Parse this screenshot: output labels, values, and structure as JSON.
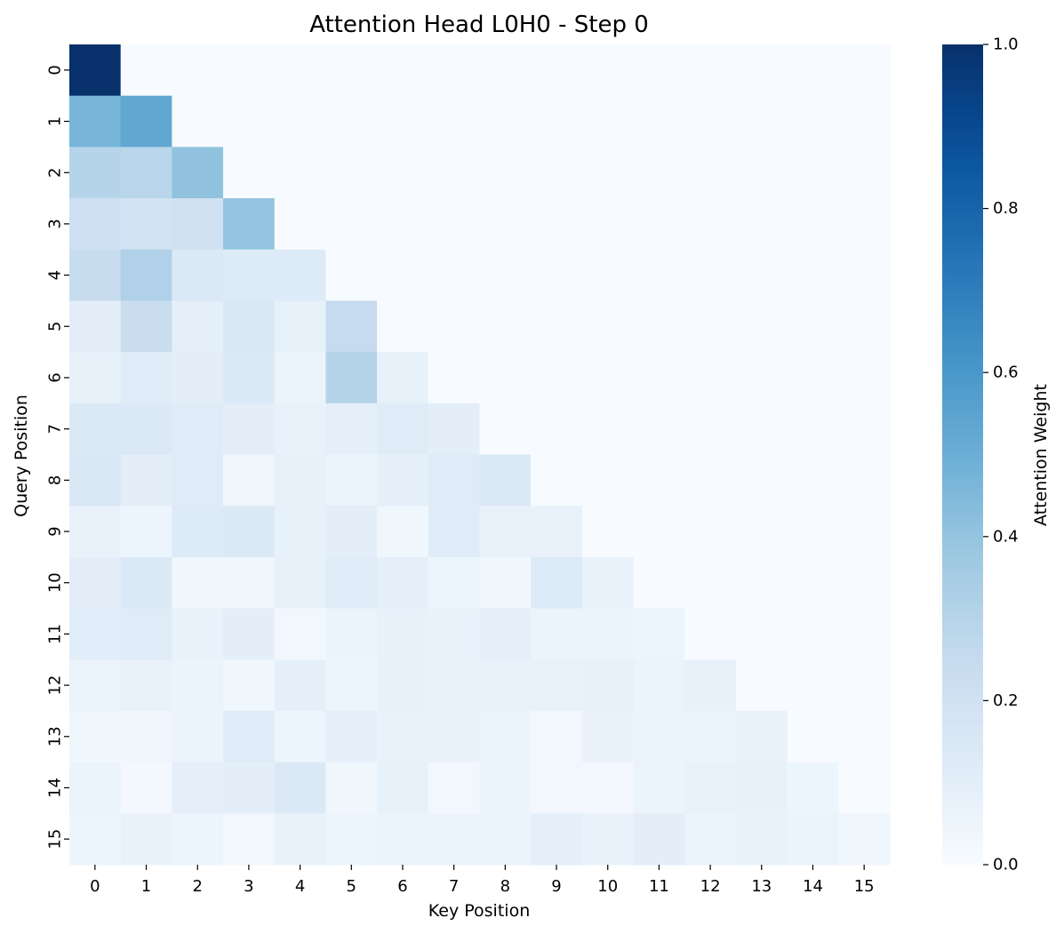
{
  "chart_data": {
    "type": "heatmap",
    "title": "Attention Head L0H0 - Step 0",
    "xlabel": "Key Position",
    "ylabel": "Query Position",
    "x_categories": [
      "0",
      "1",
      "2",
      "3",
      "4",
      "5",
      "6",
      "7",
      "8",
      "9",
      "10",
      "11",
      "12",
      "13",
      "14",
      "15"
    ],
    "y_categories": [
      "0",
      "1",
      "2",
      "3",
      "4",
      "5",
      "6",
      "7",
      "8",
      "9",
      "10",
      "11",
      "12",
      "13",
      "14",
      "15"
    ],
    "colormap": "Blues",
    "vmin": 0.0,
    "vmax": 1.0,
    "colorbar": {
      "label": "Attention Weight",
      "ticks": [
        0.0,
        0.2,
        0.4,
        0.6,
        0.8,
        1.0
      ],
      "tick_labels": [
        "0.0",
        "0.2",
        "0.4",
        "0.6",
        "0.8",
        "1.0"
      ]
    },
    "values": [
      [
        1.0,
        0,
        0,
        0,
        0,
        0,
        0,
        0,
        0,
        0,
        0,
        0,
        0,
        0,
        0,
        0
      ],
      [
        0.47,
        0.53,
        0,
        0,
        0,
        0,
        0,
        0,
        0,
        0,
        0,
        0,
        0,
        0,
        0,
        0
      ],
      [
        0.3,
        0.29,
        0.41,
        0,
        0,
        0,
        0,
        0,
        0,
        0,
        0,
        0,
        0,
        0,
        0,
        0
      ],
      [
        0.21,
        0.19,
        0.2,
        0.4,
        0,
        0,
        0,
        0,
        0,
        0,
        0,
        0,
        0,
        0,
        0,
        0
      ],
      [
        0.24,
        0.32,
        0.14,
        0.13,
        0.13,
        0,
        0,
        0,
        0,
        0,
        0,
        0,
        0,
        0,
        0,
        0
      ],
      [
        0.1,
        0.23,
        0.09,
        0.15,
        0.08,
        0.25,
        0,
        0,
        0,
        0,
        0,
        0,
        0,
        0,
        0,
        0
      ],
      [
        0.08,
        0.12,
        0.1,
        0.14,
        0.06,
        0.3,
        0.08,
        0,
        0,
        0,
        0,
        0,
        0,
        0,
        0,
        0
      ],
      [
        0.14,
        0.14,
        0.12,
        0.1,
        0.07,
        0.09,
        0.12,
        0.1,
        0,
        0,
        0,
        0,
        0,
        0,
        0,
        0
      ],
      [
        0.15,
        0.1,
        0.12,
        0.04,
        0.08,
        0.06,
        0.09,
        0.12,
        0.14,
        0,
        0,
        0,
        0,
        0,
        0,
        0
      ],
      [
        0.07,
        0.05,
        0.13,
        0.14,
        0.08,
        0.1,
        0.04,
        0.12,
        0.07,
        0.07,
        0,
        0,
        0,
        0,
        0,
        0
      ],
      [
        0.1,
        0.14,
        0.04,
        0.04,
        0.08,
        0.12,
        0.09,
        0.05,
        0.04,
        0.13,
        0.07,
        0,
        0,
        0,
        0,
        0
      ],
      [
        0.11,
        0.12,
        0.07,
        0.1,
        0.03,
        0.06,
        0.08,
        0.07,
        0.09,
        0.06,
        0.06,
        0.05,
        0,
        0,
        0,
        0
      ],
      [
        0.06,
        0.07,
        0.06,
        0.04,
        0.09,
        0.05,
        0.08,
        0.07,
        0.07,
        0.07,
        0.08,
        0.06,
        0.08,
        0,
        0,
        0
      ],
      [
        0.04,
        0.04,
        0.06,
        0.12,
        0.05,
        0.09,
        0.07,
        0.07,
        0.06,
        0.03,
        0.07,
        0.06,
        0.06,
        0.07,
        0,
        0
      ],
      [
        0.06,
        0.02,
        0.09,
        0.1,
        0.14,
        0.04,
        0.08,
        0.03,
        0.06,
        0.03,
        0.02,
        0.06,
        0.07,
        0.08,
        0.05,
        0
      ],
      [
        0.05,
        0.07,
        0.05,
        0.03,
        0.07,
        0.05,
        0.06,
        0.06,
        0.06,
        0.09,
        0.07,
        0.1,
        0.06,
        0.07,
        0.06,
        0.04
      ]
    ]
  }
}
